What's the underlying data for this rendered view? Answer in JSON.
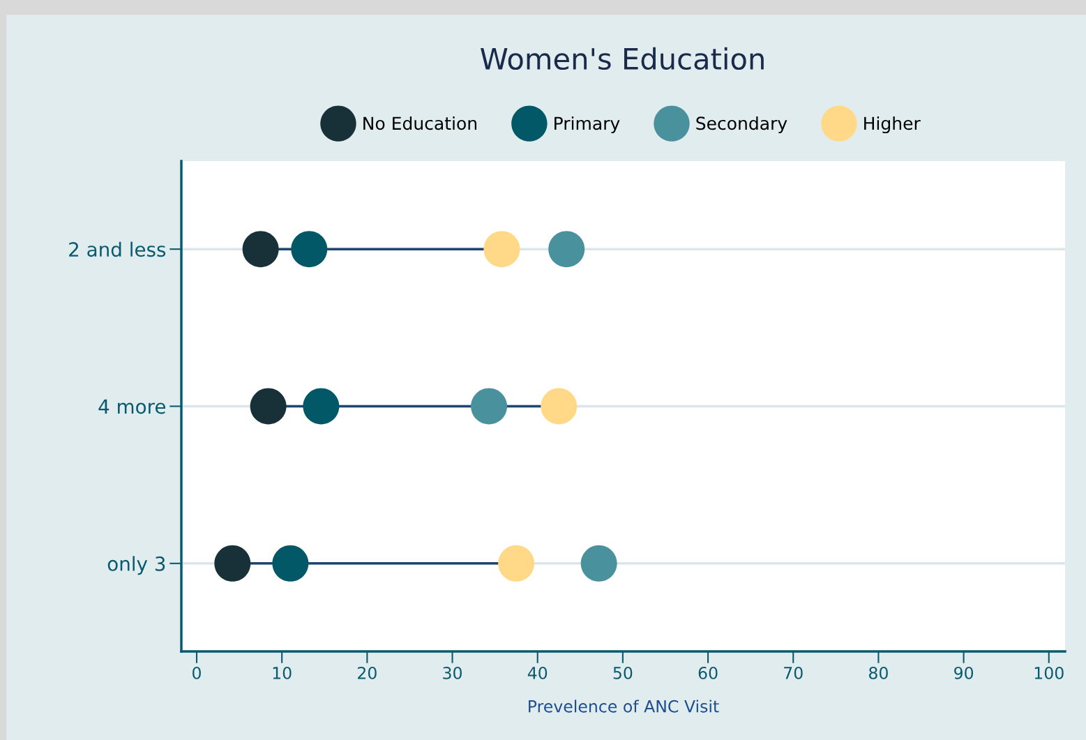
{
  "chart_data": {
    "type": "scatter",
    "title": "Women's Education",
    "xlabel": "Prevelence of ANC Visit",
    "orientation": "horizontal",
    "categories": [
      "2 and less",
      "4 more",
      "only 3"
    ],
    "series": [
      {
        "name": "No Education",
        "color": "#183138",
        "values": [
          7.5,
          8.4,
          4.2
        ]
      },
      {
        "name": "Primary",
        "color": "#035868",
        "values": [
          13.2,
          14.6,
          11.0
        ]
      },
      {
        "name": "Secondary",
        "color": "#4a919e",
        "values": [
          43.4,
          34.3,
          47.2
        ]
      },
      {
        "name": "Higher",
        "color": "#ffd987",
        "values": [
          35.8,
          42.5,
          37.5
        ]
      }
    ],
    "xlim": [
      -1.8,
      101.9
    ],
    "xticks": [
      0,
      10,
      20,
      30,
      40,
      50,
      60,
      70,
      80,
      90,
      100
    ],
    "grid": "y",
    "legend": "top",
    "marker": "circle"
  }
}
